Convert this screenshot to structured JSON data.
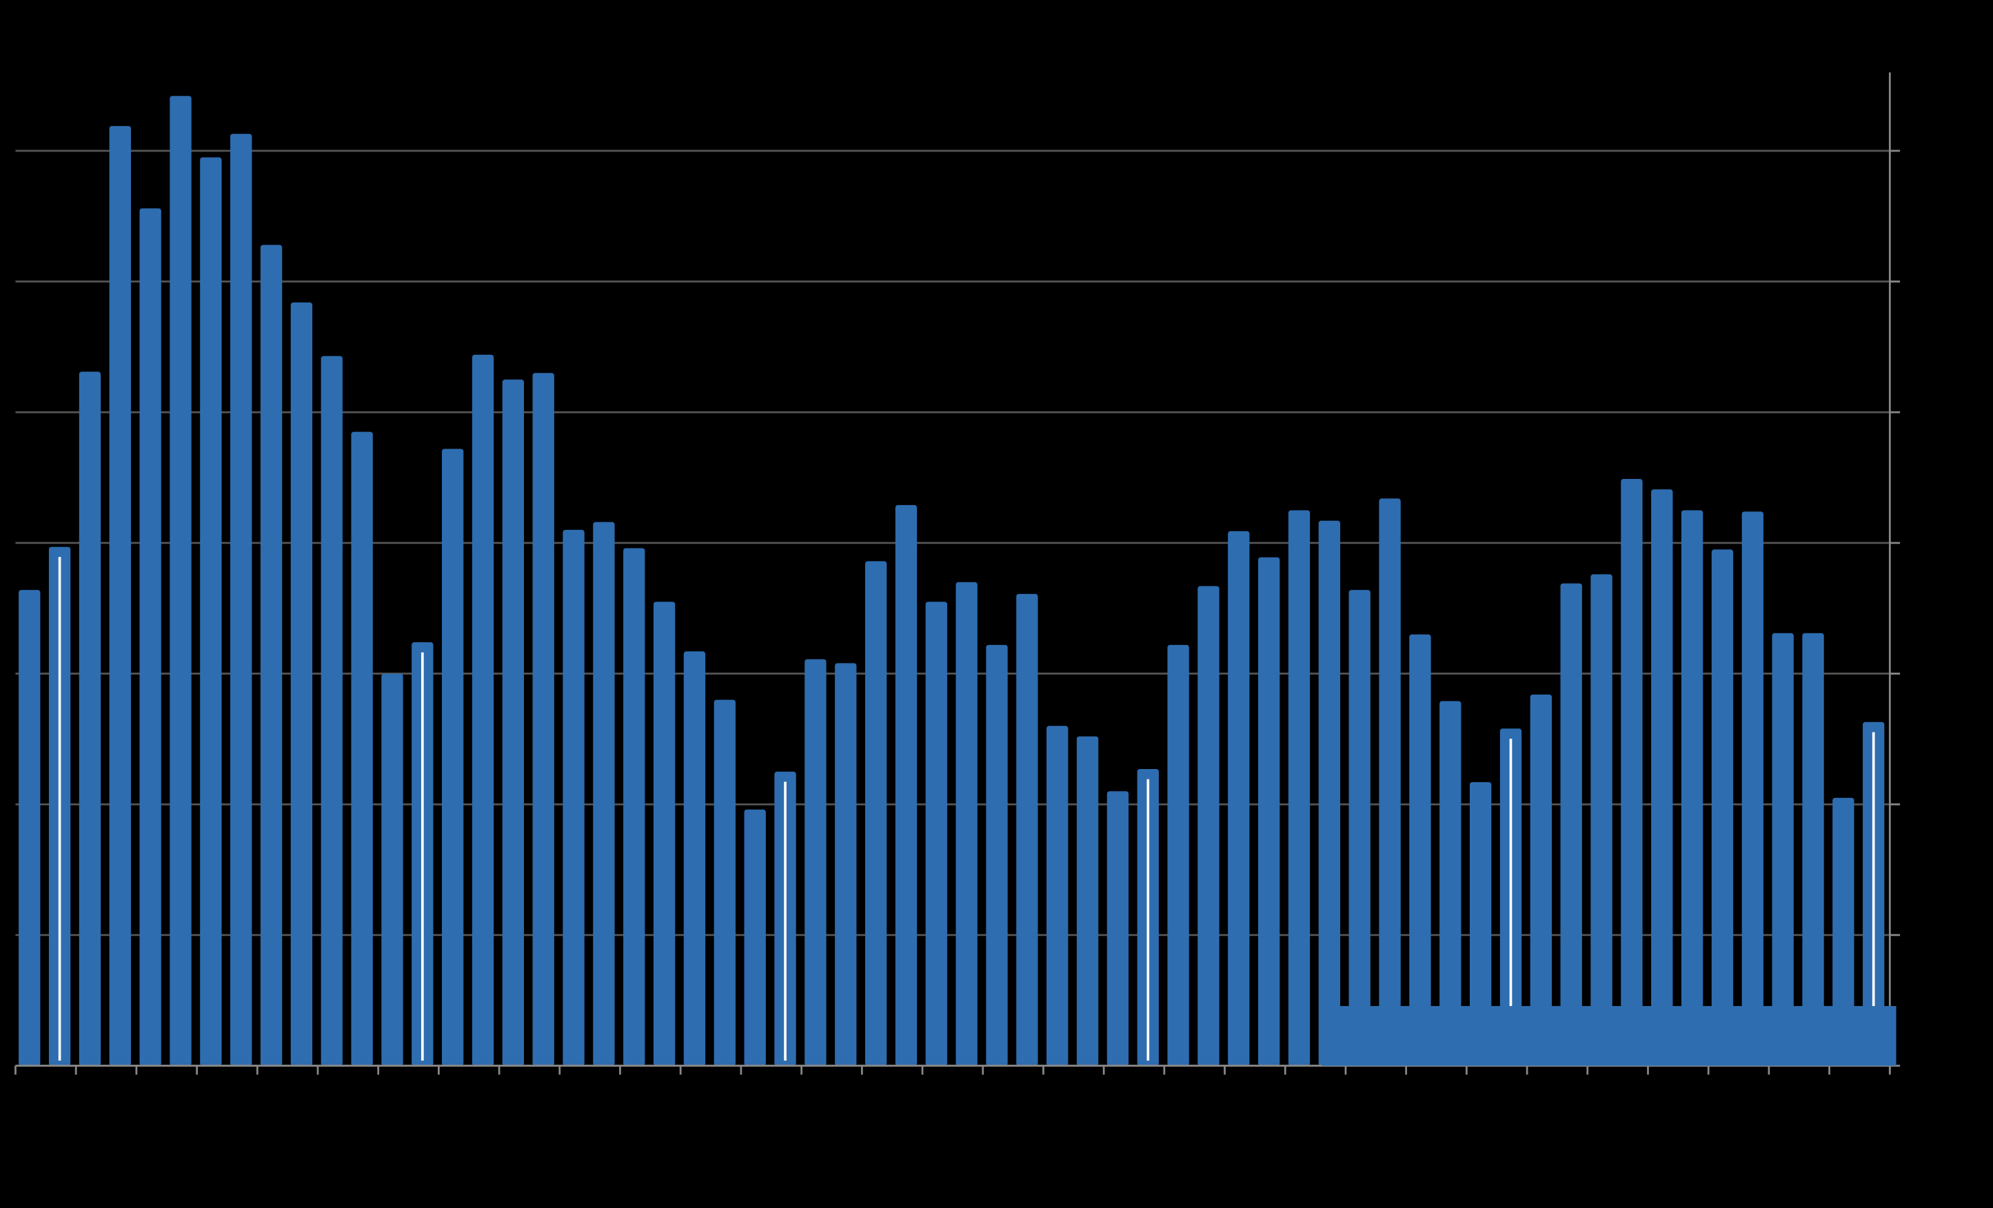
{
  "chart_data": {
    "type": "bar",
    "values": [
      3.64,
      3.97,
      5.31,
      7.19,
      6.56,
      7.42,
      6.95,
      7.13,
      6.28,
      5.84,
      5.43,
      4.85,
      3.0,
      3.24,
      4.72,
      5.44,
      5.25,
      5.3,
      4.1,
      4.16,
      3.96,
      3.55,
      3.17,
      2.8,
      1.96,
      2.25,
      3.11,
      3.08,
      3.86,
      4.29,
      3.55,
      3.7,
      3.22,
      3.61,
      2.6,
      2.52,
      2.1,
      2.27,
      3.22,
      3.67,
      4.09,
      3.89,
      4.25,
      4.17,
      3.64,
      4.34,
      3.3,
      2.79,
      2.17,
      2.58,
      2.84,
      3.69,
      3.76,
      4.49,
      4.41,
      4.25,
      3.95,
      4.24,
      3.31,
      3.31,
      2.05,
      2.63
    ],
    "color": "#2e6db0",
    "ylim": [
      0,
      7.6
    ],
    "yticks": [
      0,
      1,
      2,
      3,
      4,
      5,
      6,
      7
    ],
    "grid": true
  }
}
